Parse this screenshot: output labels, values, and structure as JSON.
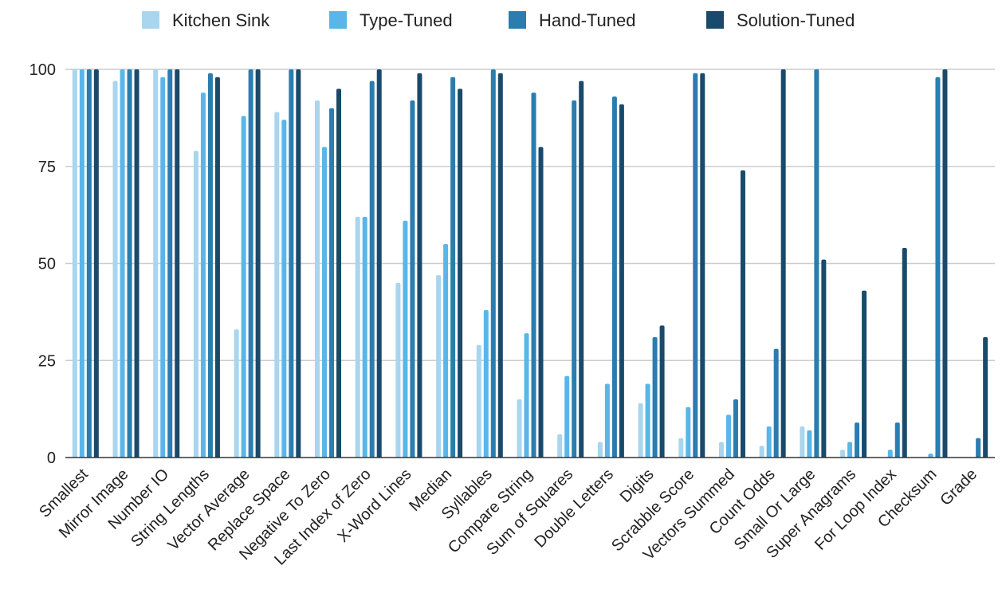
{
  "chart_data": {
    "type": "bar",
    "title": "",
    "xlabel": "",
    "ylabel": "",
    "ylim": [
      0,
      100
    ],
    "yticks": [
      "0",
      "25",
      "50",
      "75",
      "100"
    ],
    "grid": true,
    "legend_position": "top",
    "categories": [
      "Smallest",
      "Mirror Image",
      "Number IO",
      "String Lengths",
      "Vector Average",
      "Replace Space",
      "Negative To Zero",
      "Last Index of Zero",
      "X-Word Lines",
      "Median",
      "Syllables",
      "Compare String",
      "Sum of Squares",
      "Double Letters",
      "Digits",
      "Scrabble Score",
      "Vectors Summed",
      "Count Odds",
      "Small Or Large",
      "Super Anagrams",
      "For Loop Index",
      "Checksum",
      "Grade"
    ],
    "series": [
      {
        "name": "Kitchen Sink",
        "color": "#a9d5ee",
        "values": [
          100,
          97,
          100,
          79,
          33,
          89,
          92,
          62,
          45,
          47,
          29,
          15,
          6,
          4,
          14,
          5,
          4,
          3,
          8,
          2,
          0,
          0,
          0
        ]
      },
      {
        "name": "Type-Tuned",
        "color": "#5ab6e8",
        "values": [
          100,
          100,
          98,
          94,
          88,
          87,
          80,
          62,
          61,
          55,
          38,
          32,
          21,
          19,
          19,
          13,
          11,
          8,
          7,
          4,
          2,
          1,
          0
        ]
      },
      {
        "name": "Hand-Tuned",
        "color": "#2a7dae",
        "values": [
          100,
          100,
          100,
          99,
          100,
          100,
          90,
          97,
          92,
          98,
          100,
          94,
          92,
          93,
          31,
          99,
          15,
          28,
          100,
          9,
          9,
          98,
          5
        ]
      },
      {
        "name": "Solution-Tuned",
        "color": "#1a4a6b",
        "values": [
          100,
          100,
          100,
          98,
          100,
          100,
          95,
          100,
          99,
          95,
          99,
          80,
          97,
          91,
          34,
          99,
          74,
          100,
          51,
          43,
          54,
          100,
          31
        ]
      }
    ]
  }
}
